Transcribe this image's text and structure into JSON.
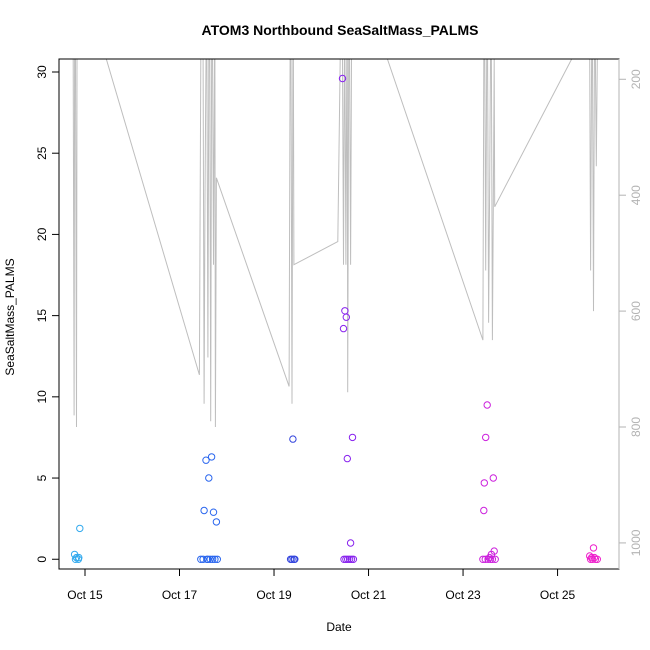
{
  "chart_data": {
    "type": "scatter",
    "title": "ATOM3 Northbound SeaSaltMass_PALMS",
    "xlabel": "Date",
    "ylabel": "SeaSaltMass_PALMS",
    "x_tick_labels": [
      "Oct 15",
      "Oct 17",
      "Oct 19",
      "Oct 21",
      "Oct 23",
      "Oct 25"
    ],
    "x_tick_dates": [
      15,
      17,
      19,
      21,
      23,
      25
    ],
    "x_range_dates": [
      14.45,
      26.3
    ],
    "y_ticks": [
      0,
      5,
      10,
      15,
      20,
      25,
      30
    ],
    "ylim": [
      -0.6,
      30.8
    ],
    "right_axis": {
      "label": "",
      "ticks": [
        200,
        400,
        600,
        800,
        1000
      ],
      "ylim_reversed": [
        1045,
        165
      ],
      "color": "#b3b3b3"
    },
    "point_style": "open circle, color shifts from sky blue to blue to purple to magenta over time",
    "series": [
      {
        "points": [
          {
            "x": 14.78,
            "y": 0.3,
            "color": "#33aaee"
          },
          {
            "x": 14.8,
            "y": 0.0,
            "color": "#33aaee"
          },
          {
            "x": 14.82,
            "y": 0.1,
            "color": "#33aaee"
          },
          {
            "x": 14.86,
            "y": 0.0,
            "color": "#33aaee"
          },
          {
            "x": 14.87,
            "y": 0.1,
            "color": "#33aaee"
          },
          {
            "x": 14.89,
            "y": 1.9,
            "color": "#33aaee"
          },
          {
            "x": 17.45,
            "y": 0.0,
            "color": "#2a66ee"
          },
          {
            "x": 17.5,
            "y": 0.0,
            "color": "#2a66ee"
          },
          {
            "x": 17.52,
            "y": 3.0,
            "color": "#2a66ee"
          },
          {
            "x": 17.56,
            "y": 6.1,
            "color": "#2a66ee"
          },
          {
            "x": 17.58,
            "y": 0.0,
            "color": "#2a66ee"
          },
          {
            "x": 17.6,
            "y": 0.0,
            "color": "#2a66ee"
          },
          {
            "x": 17.62,
            "y": 5.0,
            "color": "#2a66ee"
          },
          {
            "x": 17.65,
            "y": 0.0,
            "color": "#2a66ee"
          },
          {
            "x": 17.68,
            "y": 6.3,
            "color": "#2a66ee"
          },
          {
            "x": 17.7,
            "y": 0.0,
            "color": "#2a66ee"
          },
          {
            "x": 17.72,
            "y": 2.9,
            "color": "#2a66ee"
          },
          {
            "x": 17.75,
            "y": 0.0,
            "color": "#2a66ee"
          },
          {
            "x": 17.78,
            "y": 2.3,
            "color": "#2a66ee"
          },
          {
            "x": 17.8,
            "y": 0.0,
            "color": "#2a66ee"
          },
          {
            "x": 19.35,
            "y": 0.0,
            "color": "#3344dd"
          },
          {
            "x": 19.38,
            "y": 0.0,
            "color": "#3344dd"
          },
          {
            "x": 19.4,
            "y": 7.4,
            "color": "#3344dd"
          },
          {
            "x": 19.42,
            "y": 0.0,
            "color": "#3344dd"
          },
          {
            "x": 19.44,
            "y": 0.0,
            "color": "#3344dd"
          },
          {
            "x": 20.45,
            "y": 29.6,
            "color": "#8822ee"
          },
          {
            "x": 20.48,
            "y": 0.0,
            "color": "#8822ee"
          },
          {
            "x": 20.47,
            "y": 14.2,
            "color": "#8822ee"
          },
          {
            "x": 20.5,
            "y": 15.3,
            "color": "#8822ee"
          },
          {
            "x": 20.52,
            "y": 0.0,
            "color": "#8822ee"
          },
          {
            "x": 20.53,
            "y": 14.9,
            "color": "#8822ee"
          },
          {
            "x": 20.55,
            "y": 6.2,
            "color": "#8822ee"
          },
          {
            "x": 20.56,
            "y": 0.0,
            "color": "#8822ee"
          },
          {
            "x": 20.6,
            "y": 0.0,
            "color": "#8822ee"
          },
          {
            "x": 20.62,
            "y": 1.0,
            "color": "#8822ee"
          },
          {
            "x": 20.64,
            "y": 0.0,
            "color": "#8822ee"
          },
          {
            "x": 20.66,
            "y": 7.5,
            "color": "#8822ee"
          },
          {
            "x": 20.68,
            "y": 0.0,
            "color": "#8822ee"
          },
          {
            "x": 23.42,
            "y": 0.0,
            "color": "#cc22dd"
          },
          {
            "x": 23.44,
            "y": 3.0,
            "color": "#cc22dd"
          },
          {
            "x": 23.45,
            "y": 4.7,
            "color": "#cc22dd"
          },
          {
            "x": 23.47,
            "y": 0.0,
            "color": "#cc22dd"
          },
          {
            "x": 23.48,
            "y": 7.5,
            "color": "#cc22dd"
          },
          {
            "x": 23.51,
            "y": 9.5,
            "color": "#cc22dd"
          },
          {
            "x": 23.53,
            "y": 0.0,
            "color": "#cc22dd"
          },
          {
            "x": 23.56,
            "y": 0.1,
            "color": "#cc22dd"
          },
          {
            "x": 23.58,
            "y": 0.0,
            "color": "#cc22dd"
          },
          {
            "x": 23.6,
            "y": 0.3,
            "color": "#cc22dd"
          },
          {
            "x": 23.62,
            "y": 0.0,
            "color": "#cc22dd"
          },
          {
            "x": 23.64,
            "y": 5.0,
            "color": "#cc22dd"
          },
          {
            "x": 23.66,
            "y": 0.5,
            "color": "#cc22dd"
          },
          {
            "x": 23.68,
            "y": 0.0,
            "color": "#cc22dd"
          },
          {
            "x": 25.68,
            "y": 0.2,
            "color": "#ee22cc"
          },
          {
            "x": 25.7,
            "y": 0.0,
            "color": "#ee22cc"
          },
          {
            "x": 25.72,
            "y": 0.1,
            "color": "#ee22cc"
          },
          {
            "x": 25.74,
            "y": 0.0,
            "color": "#ee22cc"
          },
          {
            "x": 25.76,
            "y": 0.7,
            "color": "#ee22cc"
          },
          {
            "x": 25.78,
            "y": 0.1,
            "color": "#ee22cc"
          },
          {
            "x": 25.8,
            "y": 0.0,
            "color": "#ee22cc"
          },
          {
            "x": 25.84,
            "y": 0.0,
            "color": "#ee22cc"
          }
        ]
      },
      {
        "axis": "right",
        "type": "line",
        "color": "#bebebe",
        "points": [
          {
            "x": 14.75,
            "y": 160
          },
          {
            "x": 14.77,
            "y": 780
          },
          {
            "x": 14.78,
            "y": 160
          },
          {
            "x": 14.8,
            "y": 160
          },
          {
            "x": 14.82,
            "y": 800
          },
          {
            "x": 14.83,
            "y": 160
          },
          {
            "x": 14.85,
            "y": 160
          },
          {
            "x": 15.45,
            "y": 160
          },
          {
            "x": 17.42,
            "y": 710
          },
          {
            "x": 17.45,
            "y": 160
          },
          {
            "x": 17.5,
            "y": 160
          },
          {
            "x": 17.52,
            "y": 760
          },
          {
            "x": 17.54,
            "y": 400
          },
          {
            "x": 17.56,
            "y": 160
          },
          {
            "x": 17.58,
            "y": 160
          },
          {
            "x": 17.6,
            "y": 680
          },
          {
            "x": 17.62,
            "y": 160
          },
          {
            "x": 17.64,
            "y": 160
          },
          {
            "x": 17.66,
            "y": 790
          },
          {
            "x": 17.68,
            "y": 160
          },
          {
            "x": 17.7,
            "y": 160
          },
          {
            "x": 17.72,
            "y": 520
          },
          {
            "x": 17.74,
            "y": 160
          },
          {
            "x": 17.75,
            "y": 160
          },
          {
            "x": 17.76,
            "y": 800
          },
          {
            "x": 17.78,
            "y": 370
          },
          {
            "x": 19.32,
            "y": 730
          },
          {
            "x": 19.34,
            "y": 160
          },
          {
            "x": 19.36,
            "y": 160
          },
          {
            "x": 19.38,
            "y": 760
          },
          {
            "x": 19.4,
            "y": 160
          },
          {
            "x": 19.41,
            "y": 160
          },
          {
            "x": 19.42,
            "y": 520
          },
          {
            "x": 20.35,
            "y": 480
          },
          {
            "x": 20.4,
            "y": 160
          },
          {
            "x": 20.45,
            "y": 160
          },
          {
            "x": 20.47,
            "y": 520
          },
          {
            "x": 20.49,
            "y": 160
          },
          {
            "x": 20.5,
            "y": 160
          },
          {
            "x": 20.52,
            "y": 520
          },
          {
            "x": 20.54,
            "y": 160
          },
          {
            "x": 20.55,
            "y": 160
          },
          {
            "x": 20.56,
            "y": 740
          },
          {
            "x": 20.58,
            "y": 160
          },
          {
            "x": 20.6,
            "y": 160
          },
          {
            "x": 20.62,
            "y": 520
          },
          {
            "x": 20.64,
            "y": 160
          },
          {
            "x": 21.4,
            "y": 160
          },
          {
            "x": 23.42,
            "y": 650
          },
          {
            "x": 23.44,
            "y": 160
          },
          {
            "x": 23.46,
            "y": 160
          },
          {
            "x": 23.48,
            "y": 530
          },
          {
            "x": 23.5,
            "y": 160
          },
          {
            "x": 23.52,
            "y": 160
          },
          {
            "x": 23.54,
            "y": 620
          },
          {
            "x": 23.56,
            "y": 420
          },
          {
            "x": 23.58,
            "y": 160
          },
          {
            "x": 23.6,
            "y": 160
          },
          {
            "x": 23.62,
            "y": 650
          },
          {
            "x": 23.64,
            "y": 420
          },
          {
            "x": 23.66,
            "y": 160
          },
          {
            "x": 23.67,
            "y": 420
          },
          {
            "x": 25.3,
            "y": 160
          },
          {
            "x": 25.35,
            "y": 160
          },
          {
            "x": 25.68,
            "y": 160
          },
          {
            "x": 25.7,
            "y": 530
          },
          {
            "x": 25.72,
            "y": 160
          },
          {
            "x": 25.74,
            "y": 160
          },
          {
            "x": 25.76,
            "y": 600
          },
          {
            "x": 25.78,
            "y": 160
          },
          {
            "x": 25.8,
            "y": 160
          },
          {
            "x": 25.82,
            "y": 350
          },
          {
            "x": 25.84,
            "y": 160
          },
          {
            "x": 25.86,
            "y": 160
          }
        ]
      }
    ]
  }
}
